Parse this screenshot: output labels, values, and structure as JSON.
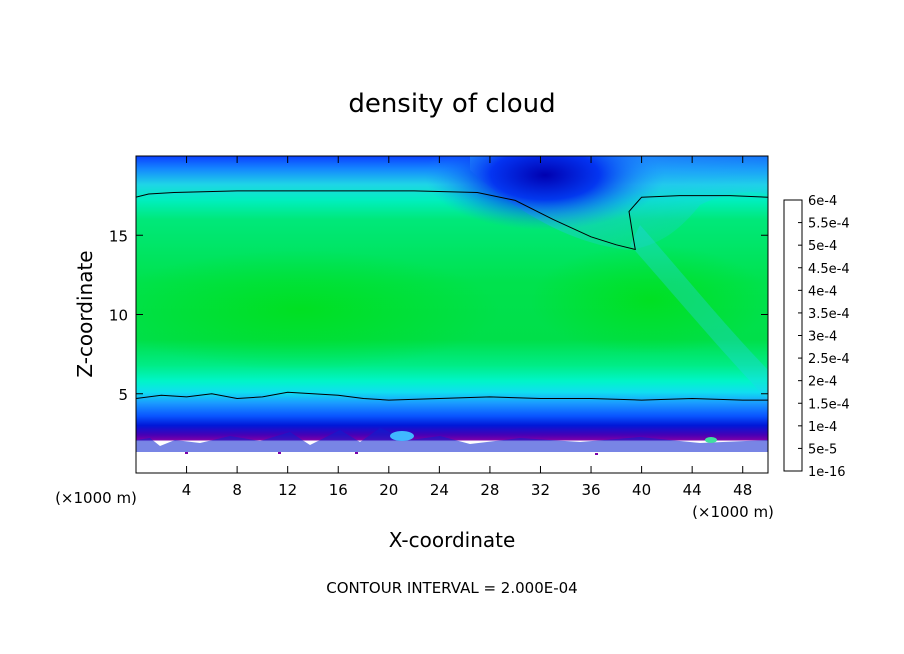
{
  "chart_data": {
    "type": "heatmap",
    "title": "density of cloud",
    "xlabel": "X-coordinate",
    "ylabel": "Z-coordinate",
    "x_unit": "(×1000 m)",
    "x_unit_right": "(×1000 m)",
    "xlim": [
      0,
      50
    ],
    "ylim": [
      0,
      20
    ],
    "x_ticks": [
      4,
      8,
      12,
      16,
      20,
      24,
      28,
      32,
      36,
      40,
      44,
      48
    ],
    "y_ticks": [
      5,
      10,
      15
    ],
    "footer": "CONTOUR INTERVAL = 2.000E-04",
    "contour_interval": 0.0002,
    "colorbar": {
      "labels": [
        "6e-4",
        "5.5e-4",
        "5e-4",
        "4.5e-4",
        "4e-4",
        "3.5e-4",
        "3e-4",
        "2.5e-4",
        "2e-4",
        "1.5e-4",
        "1e-4",
        "5e-5",
        "1e-16"
      ],
      "levels": [
        1e-16,
        5e-05,
        0.0001,
        0.00015,
        0.0002,
        0.00025,
        0.0003,
        0.00035,
        0.0004,
        0.00045,
        0.0005,
        0.00055,
        0.0006
      ],
      "colors": [
        "#7a00a8",
        "#0000aa",
        "#0030ff",
        "#0090ff",
        "#00ffcc",
        "#00ee66",
        "#00dd00",
        "#66dd00",
        "#ffff00",
        "#ffb000",
        "#ff5a00",
        "#ff0000",
        "#ff9090"
      ]
    },
    "contour_lines": [
      {
        "level": 0.0002,
        "x": [
          0,
          1,
          3,
          8,
          15,
          22,
          27,
          30,
          33,
          36,
          38,
          39.5,
          39.3,
          39,
          40,
          43,
          47,
          50
        ],
        "y": [
          17.4,
          17.6,
          17.7,
          17.8,
          17.8,
          17.8,
          17.7,
          17.2,
          16.0,
          14.9,
          14.4,
          14.1,
          15.0,
          16.5,
          17.4,
          17.5,
          17.5,
          17.4
        ]
      },
      {
        "level": 0.0002,
        "x": [
          0,
          2,
          4,
          6,
          8,
          10,
          12,
          14,
          16,
          18,
          20,
          24,
          28,
          32,
          36,
          40,
          44,
          48,
          50
        ],
        "y": [
          4.7,
          4.9,
          4.8,
          5.0,
          4.7,
          4.8,
          5.1,
          5.0,
          4.9,
          4.7,
          4.6,
          4.7,
          4.8,
          4.7,
          4.7,
          4.6,
          4.7,
          4.6,
          4.6
        ]
      }
    ],
    "fields": {
      "lower_cloud_base_z": 1.9,
      "middle_max": 0.00025,
      "top_min_x": 32
    }
  }
}
